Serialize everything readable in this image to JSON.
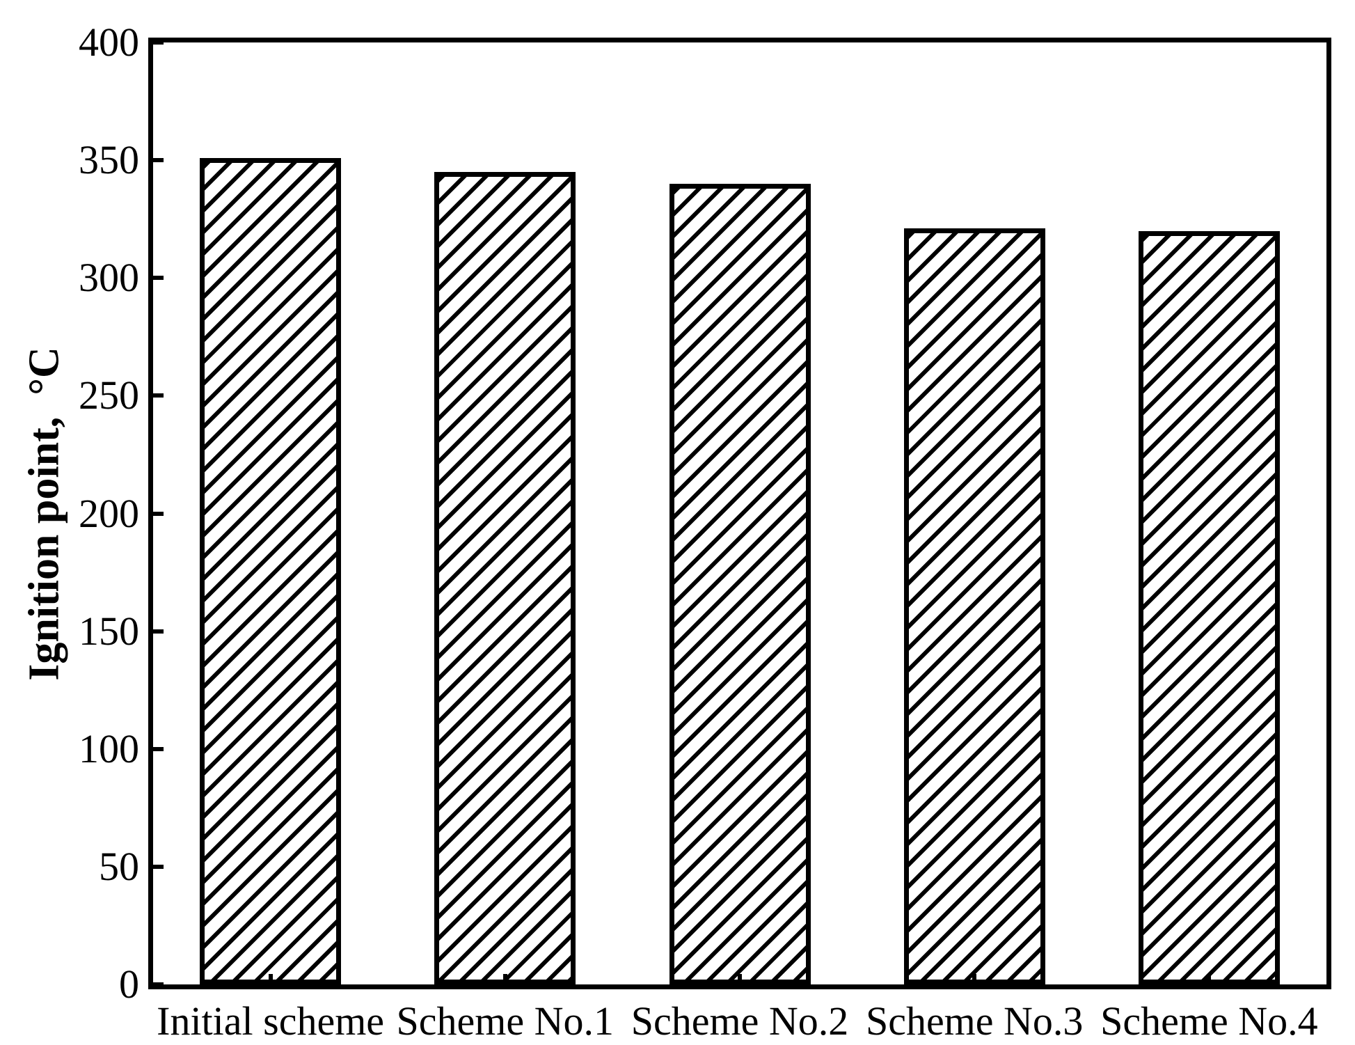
{
  "chart_data": {
    "type": "bar",
    "categories": [
      "Initial scheme",
      "Scheme No.1",
      "Scheme No.2",
      "Scheme No.3",
      "Scheme No.4"
    ],
    "values": [
      351,
      345,
      340,
      321,
      320
    ],
    "title": "",
    "xlabel": "",
    "ylabel": "Ignition point,  °C",
    "ylim": [
      0,
      400
    ],
    "yticks": [
      0,
      50,
      100,
      150,
      200,
      250,
      300,
      350,
      400
    ],
    "grid": false,
    "legend": null,
    "bar_style": {
      "fill": "#ffffff",
      "edge_color": "#000000",
      "hatch": "forward-diagonal"
    },
    "frame_color": "#000000",
    "background_color": "#ffffff"
  }
}
